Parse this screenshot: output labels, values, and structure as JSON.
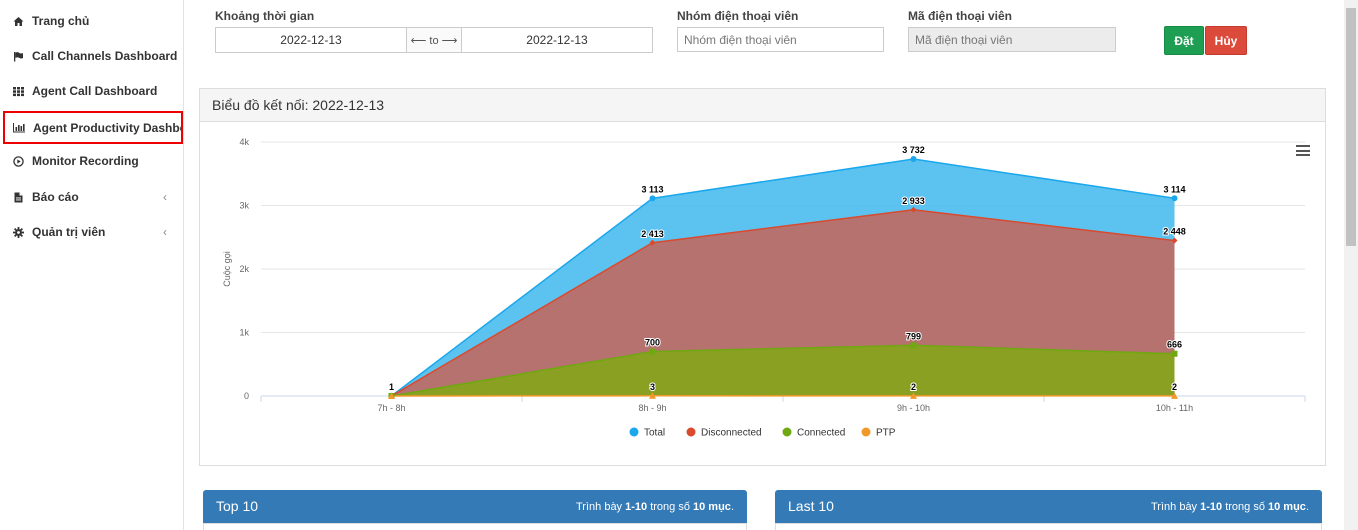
{
  "sidebar": {
    "items": [
      {
        "label": "Trang chủ",
        "icon": "home-icon"
      },
      {
        "label": "Call Channels Dashboard",
        "icon": "flag-icon"
      },
      {
        "label": "Agent Call Dashboard",
        "icon": "grid-icon"
      },
      {
        "label": "Agent Productivity Dashboard",
        "icon": "bar-chart-icon"
      },
      {
        "label": "Monitor Recording",
        "icon": "play-circle-icon"
      },
      {
        "label": "Báo cáo",
        "icon": "file-icon"
      },
      {
        "label": "Quản trị viên",
        "icon": "gear-icon"
      }
    ],
    "chevron": "‹"
  },
  "filters": {
    "time_label": "Khoảng thời gian",
    "date_from": "2022-12-13",
    "date_sep": "⟵ to ⟶",
    "date_to": "2022-12-13",
    "group_label": "Nhóm điện thoại viên",
    "group_placeholder": "Nhóm điện thoại viên",
    "code_label": "Mã điện thoại viên",
    "code_placeholder": "Mã điện thoại viên",
    "set_button": "Đặt",
    "cancel_button": "Hủy"
  },
  "panel": {
    "title": "Biểu đồ kết nối: 2022-12-13"
  },
  "colors": {
    "total": "#1aa7ec",
    "disconnected": "#d94a2e",
    "connected": "#6fa810",
    "ptp": "#f0992a",
    "set_button": "#1e9e52",
    "cancel_button": "#dc4a3c",
    "card": "#337ab7"
  },
  "chart_data": {
    "type": "area",
    "title": "",
    "xlabel": "",
    "ylabel": "Cuộc gọi",
    "categories": [
      "7h - 8h",
      "8h - 9h",
      "9h - 10h",
      "10h - 11h"
    ],
    "ylim": [
      0,
      4000
    ],
    "yticks": [
      0,
      1000,
      2000,
      3000,
      4000
    ],
    "ytick_labels": [
      "0",
      "1k",
      "2k",
      "3k",
      "4k"
    ],
    "series": [
      {
        "name": "Total",
        "values": [
          1,
          3113,
          3732,
          3114
        ],
        "labels": [
          "1",
          "3 113",
          "3 732",
          "3 114"
        ]
      },
      {
        "name": "Disconnected",
        "values": [
          1,
          2413,
          2933,
          2448
        ],
        "labels": [
          "",
          "2 413",
          "2 933",
          "2 448"
        ]
      },
      {
        "name": "Connected",
        "values": [
          1,
          700,
          799,
          666
        ],
        "labels": [
          "",
          "700",
          "799",
          "666"
        ]
      },
      {
        "name": "PTP",
        "values": [
          0,
          3,
          2,
          2
        ],
        "labels": [
          "",
          "3",
          "2",
          "2"
        ]
      }
    ],
    "legend": "bottom-center",
    "grid": true
  },
  "tables": {
    "top": {
      "title": "Top 10",
      "summary_pre": "Trình bày ",
      "range": "1-10",
      "summary_mid": " trong số ",
      "count": "10 mục",
      "summary_post": "."
    },
    "last": {
      "title": "Last 10",
      "summary_pre": "Trình bày ",
      "range": "1-10",
      "summary_mid": " trong số ",
      "count": "10 mục",
      "summary_post": "."
    }
  }
}
